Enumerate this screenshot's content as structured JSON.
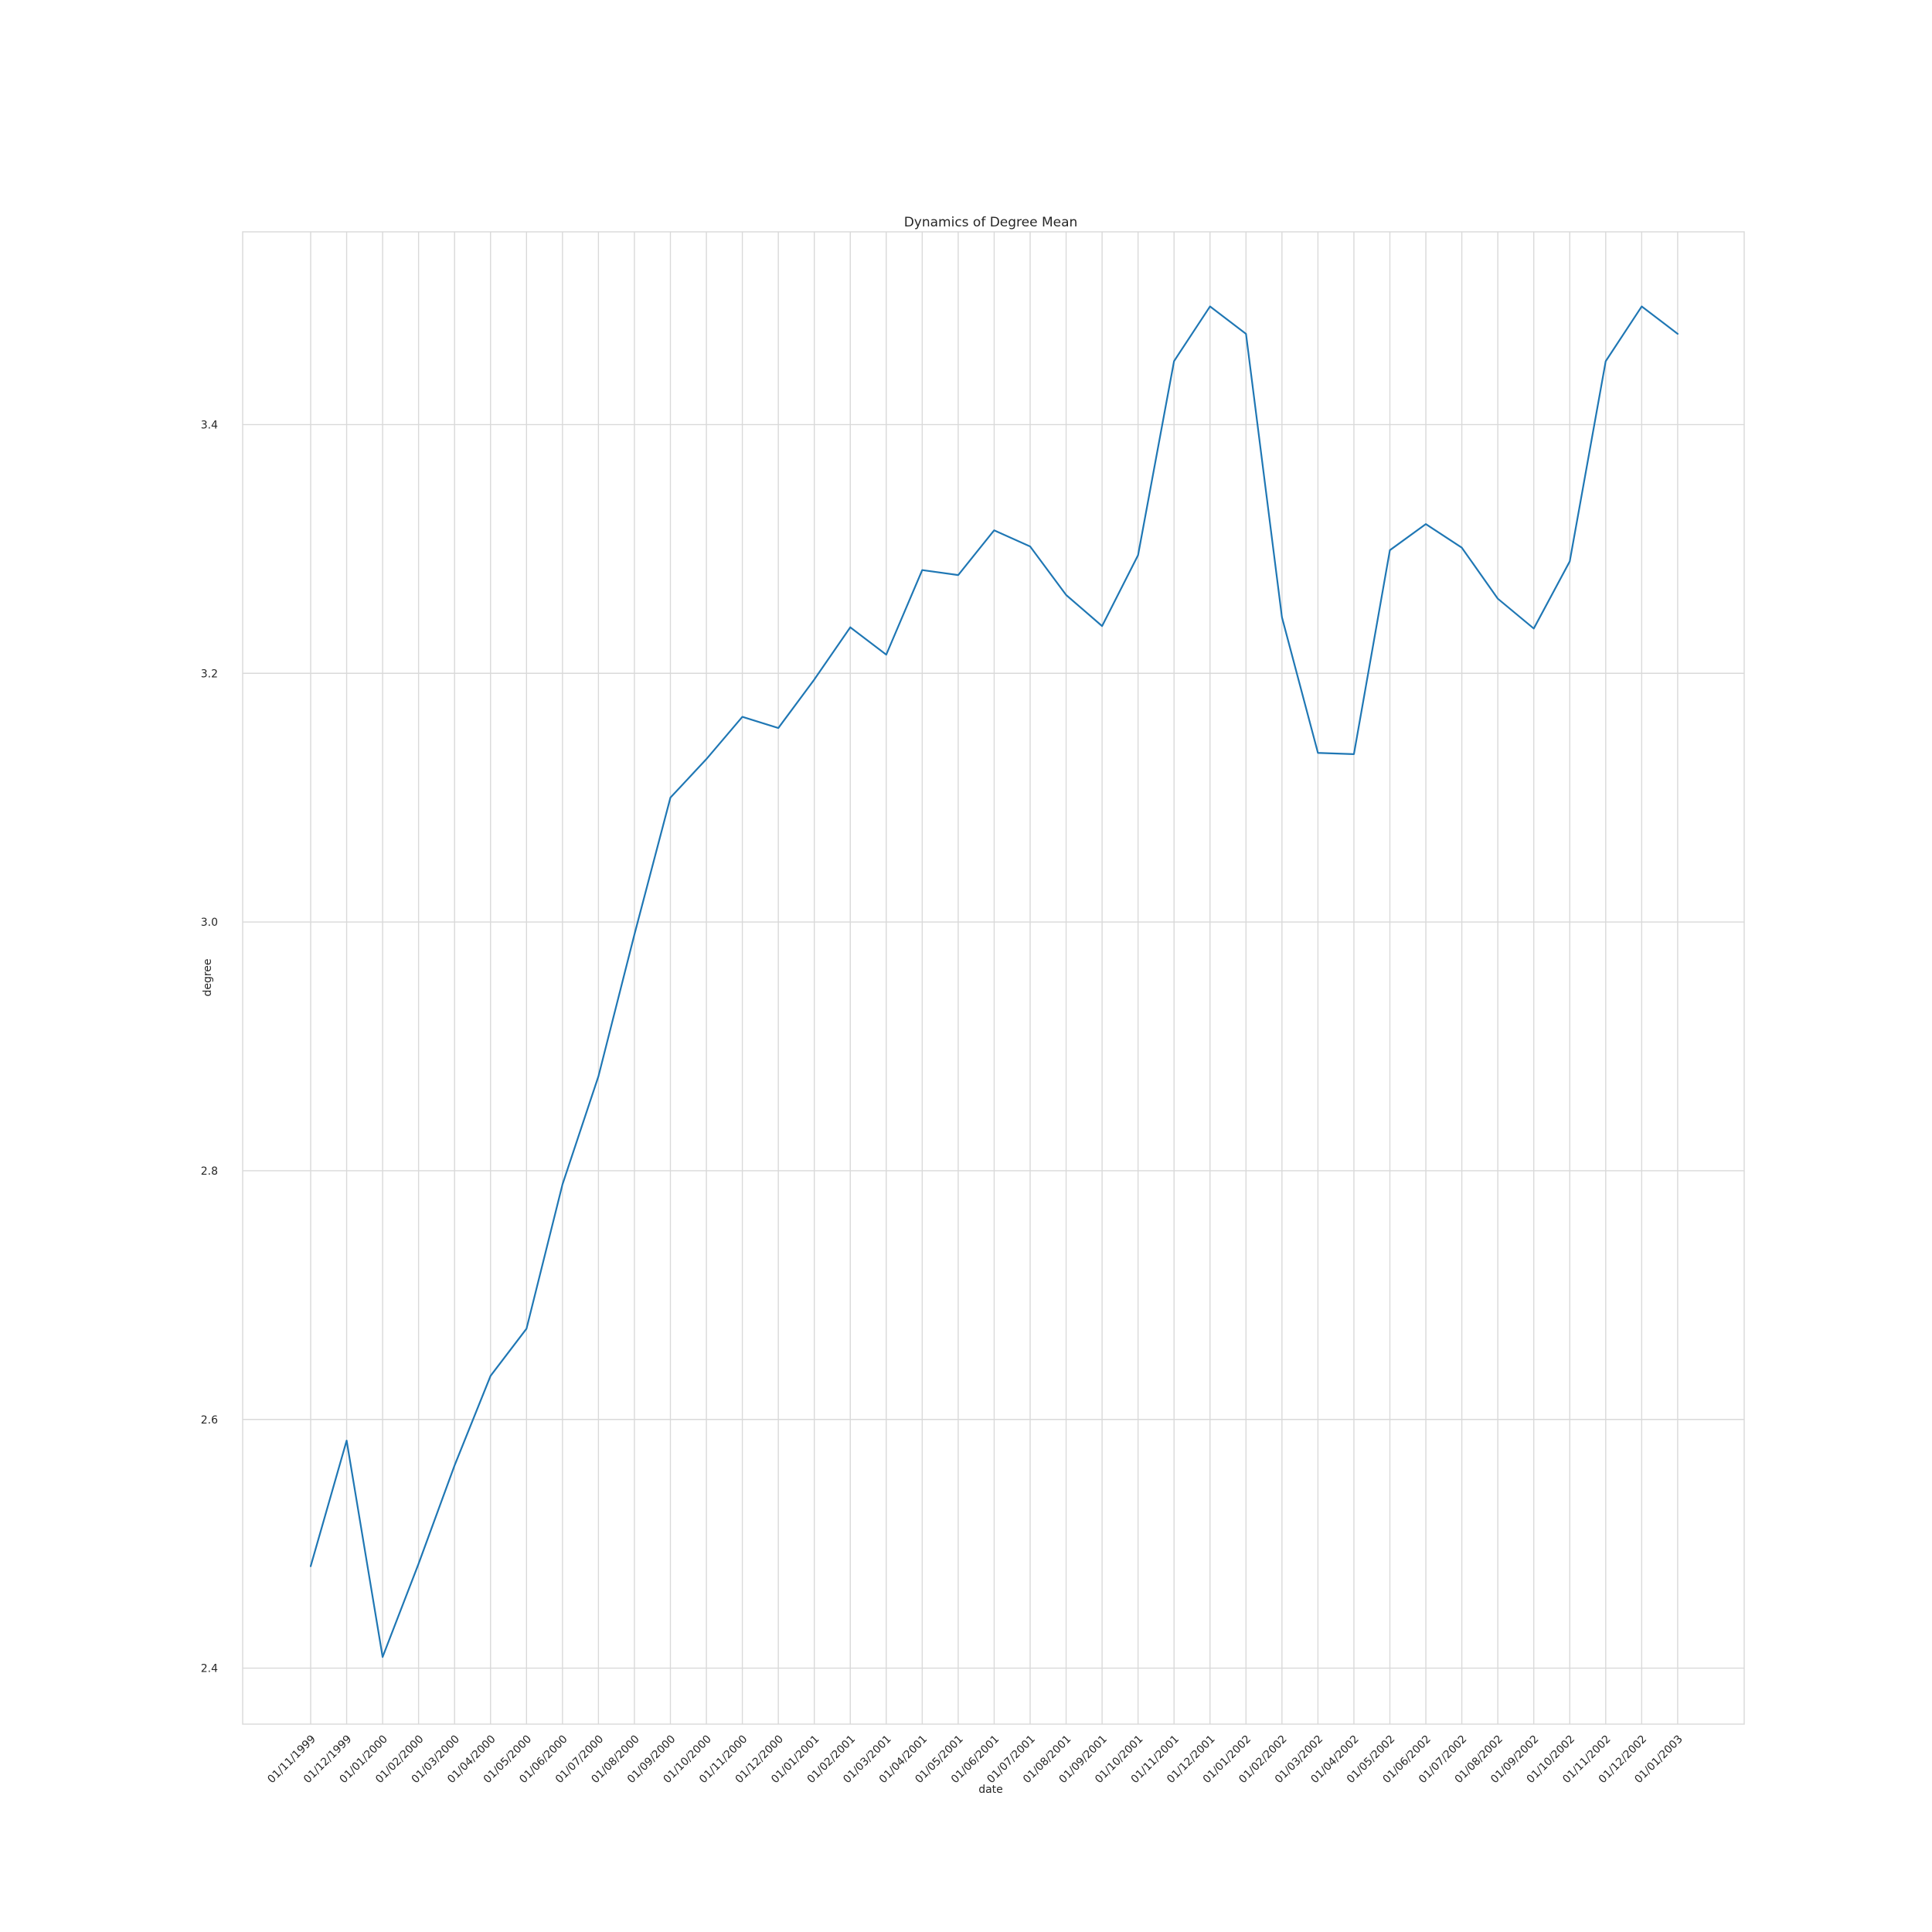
{
  "chart_data": {
    "type": "line",
    "title": "Dynamics of Degree Mean",
    "xlabel": "date",
    "ylabel": "degree",
    "grid": true,
    "legend": "none",
    "ylim": [
      2.355,
      3.555
    ],
    "yticks": [
      2.4,
      2.6,
      2.8,
      3.0,
      3.2,
      3.4
    ],
    "ytick_labels": [
      "2.4",
      "2.6",
      "2.8",
      "3.0",
      "3.2",
      "3.4"
    ],
    "series_color": "#1f77b4",
    "x": [
      "01/11/1999",
      "01/12/1999",
      "01/01/2000",
      "01/02/2000",
      "01/03/2000",
      "01/04/2000",
      "01/05/2000",
      "01/06/2000",
      "01/07/2000",
      "01/08/2000",
      "01/09/2000",
      "01/10/2000",
      "01/11/2000",
      "01/12/2000",
      "01/01/2001",
      "01/02/2001",
      "01/03/2001",
      "01/04/2001",
      "01/05/2001",
      "01/06/2001",
      "01/07/2001",
      "01/08/2001",
      "01/09/2001",
      "01/10/2001",
      "01/11/2001",
      "01/12/2001",
      "01/01/2002",
      "01/02/2002",
      "01/03/2002",
      "01/04/2002",
      "01/05/2002",
      "01/06/2002",
      "01/07/2002",
      "01/08/2002",
      "01/09/2002",
      "01/10/2002",
      "01/11/2002",
      "01/12/2002",
      "01/01/2003"
    ],
    "series": [
      {
        "values": [
          2.482,
          2.583,
          2.409,
          2.484,
          2.563,
          2.635,
          2.673,
          2.789,
          2.876,
          2.99,
          3.1,
          3.131,
          3.165,
          3.156,
          3.195,
          3.237,
          3.215,
          3.283,
          3.279,
          3.315,
          3.302,
          3.263,
          3.238,
          3.295,
          3.451,
          3.495,
          3.473,
          3.245,
          3.136,
          3.135,
          3.299,
          3.32,
          3.301,
          3.26,
          3.236,
          3.29,
          3.451,
          3.495,
          3.473
        ]
      }
    ]
  }
}
